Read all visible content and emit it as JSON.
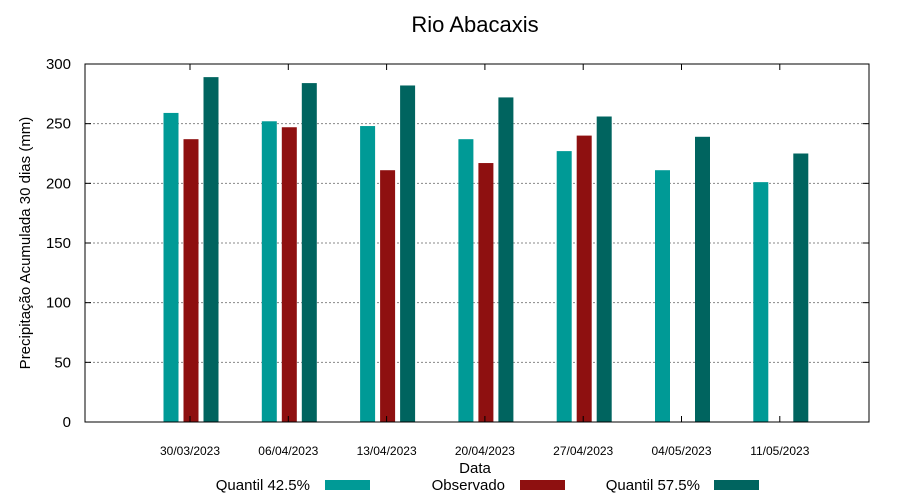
{
  "colors": {
    "q425": "#009a96",
    "observado": "#8e1010",
    "q575": "#00645f",
    "grid": "#888888",
    "axis": "#000000",
    "background": "#ffffff"
  },
  "chart_data": {
    "type": "bar",
    "title": "Rio Abacaxis",
    "xlabel": "Data",
    "ylabel": "Precipitação Acumulada 30 dias (mm)",
    "ylim": [
      0,
      300
    ],
    "yticks": [
      0,
      50,
      100,
      150,
      200,
      250,
      300
    ],
    "grid": true,
    "legend_position": "bottom",
    "categories": [
      "30/03/2023",
      "06/04/2023",
      "13/04/2023",
      "20/04/2023",
      "27/04/2023",
      "04/05/2023",
      "11/05/2023"
    ],
    "series": [
      {
        "name": "Quantil 42.5%",
        "color_key": "q425",
        "values": [
          259,
          252,
          248,
          237,
          227,
          211,
          201
        ]
      },
      {
        "name": "Observado",
        "color_key": "observado",
        "values": [
          237,
          247,
          211,
          217,
          240,
          null,
          null
        ]
      },
      {
        "name": "Quantil 57.5%",
        "color_key": "q575",
        "values": [
          289,
          284,
          282,
          272,
          256,
          239,
          225
        ]
      }
    ]
  }
}
